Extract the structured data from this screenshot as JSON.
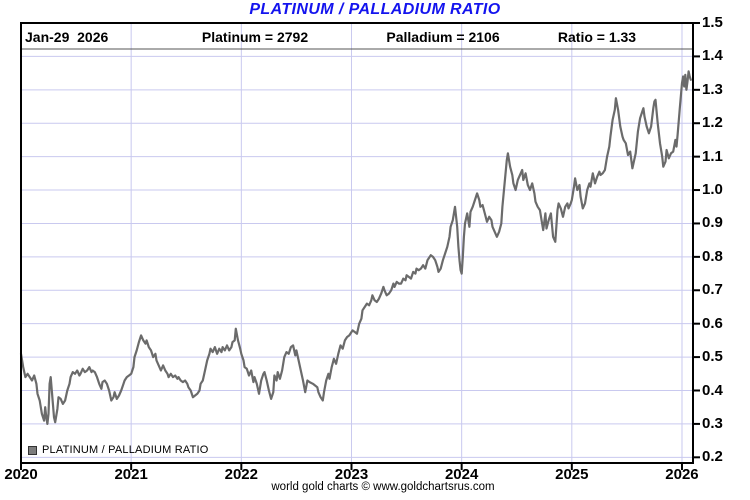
{
  "title": {
    "text": "PLATINUM / PALLADIUM RATIO",
    "color": "#1414ee"
  },
  "header": {
    "date_label": "Jan-29  2026",
    "platinum_label": "Platinum = 2792",
    "palladium_label": "Palladium = 2106",
    "ratio_label": "Ratio = 1.33"
  },
  "legend": {
    "label": "PLATINUM / PALLADIUM RATIO",
    "swatch_color": "#7d7d7d"
  },
  "footer": {
    "credit": "world gold charts © www.goldchartsrus.com"
  },
  "chart_data": {
    "type": "line",
    "title": "PLATINUM / PALLADIUM RATIO",
    "series_name": "PLATINUM / PALLADIUM RATIO",
    "line_color": "#6b6b6b",
    "grid_color": "#c9c9ef",
    "axis_color": "#000000",
    "grid": true,
    "legend_position": "bottom-left",
    "x_ticks": [
      2020,
      2021,
      2022,
      2023,
      2024,
      2025,
      2026
    ],
    "y_ticks": [
      0.2,
      0.3,
      0.4,
      0.5,
      0.6,
      0.7,
      0.8,
      0.9,
      1.0,
      1.1,
      1.2,
      1.3,
      1.4,
      1.5
    ],
    "x_range": [
      2020,
      2026.1
    ],
    "y_range": [
      0.183,
      1.5
    ],
    "latest": {
      "date": "Jan-29 2026",
      "platinum": 2792,
      "palladium": 2106,
      "ratio": 1.33
    },
    "points": [
      [
        2020.0,
        0.51
      ],
      [
        2020.02,
        0.47
      ],
      [
        2020.04,
        0.44
      ],
      [
        2020.06,
        0.45
      ],
      [
        2020.08,
        0.44
      ],
      [
        2020.1,
        0.43
      ],
      [
        2020.12,
        0.445
      ],
      [
        2020.14,
        0.42
      ],
      [
        2020.15,
        0.39
      ],
      [
        2020.17,
        0.37
      ],
      [
        2020.19,
        0.33
      ],
      [
        2020.21,
        0.31
      ],
      [
        2020.22,
        0.35
      ],
      [
        2020.23,
        0.32
      ],
      [
        2020.24,
        0.3
      ],
      [
        2020.25,
        0.33
      ],
      [
        2020.26,
        0.42
      ],
      [
        2020.27,
        0.44
      ],
      [
        2020.28,
        0.4
      ],
      [
        2020.29,
        0.36
      ],
      [
        2020.3,
        0.32
      ],
      [
        2020.31,
        0.305
      ],
      [
        2020.33,
        0.345
      ],
      [
        2020.34,
        0.38
      ],
      [
        2020.36,
        0.375
      ],
      [
        2020.38,
        0.36
      ],
      [
        2020.4,
        0.37
      ],
      [
        2020.42,
        0.4
      ],
      [
        2020.44,
        0.42
      ],
      [
        2020.45,
        0.44
      ],
      [
        2020.47,
        0.455
      ],
      [
        2020.49,
        0.45
      ],
      [
        2020.51,
        0.46
      ],
      [
        2020.53,
        0.445
      ],
      [
        2020.54,
        0.45
      ],
      [
        2020.56,
        0.465
      ],
      [
        2020.58,
        0.455
      ],
      [
        2020.6,
        0.46
      ],
      [
        2020.62,
        0.47
      ],
      [
        2020.64,
        0.455
      ],
      [
        2020.65,
        0.46
      ],
      [
        2020.67,
        0.455
      ],
      [
        2020.69,
        0.44
      ],
      [
        2020.71,
        0.42
      ],
      [
        2020.73,
        0.405
      ],
      [
        2020.74,
        0.425
      ],
      [
        2020.76,
        0.43
      ],
      [
        2020.78,
        0.42
      ],
      [
        2020.8,
        0.4
      ],
      [
        2020.82,
        0.37
      ],
      [
        2020.84,
        0.38
      ],
      [
        2020.85,
        0.395
      ],
      [
        2020.87,
        0.375
      ],
      [
        2020.89,
        0.385
      ],
      [
        2020.91,
        0.4
      ],
      [
        2020.93,
        0.42
      ],
      [
        2020.94,
        0.43
      ],
      [
        2020.96,
        0.44
      ],
      [
        2020.98,
        0.445
      ],
      [
        2021.0,
        0.45
      ],
      [
        2021.02,
        0.47
      ],
      [
        2021.03,
        0.5
      ],
      [
        2021.05,
        0.52
      ],
      [
        2021.07,
        0.545
      ],
      [
        2021.09,
        0.565
      ],
      [
        2021.11,
        0.55
      ],
      [
        2021.13,
        0.54
      ],
      [
        2021.14,
        0.55
      ],
      [
        2021.16,
        0.53
      ],
      [
        2021.18,
        0.52
      ],
      [
        2021.2,
        0.5
      ],
      [
        2021.22,
        0.51
      ],
      [
        2021.23,
        0.49
      ],
      [
        2021.25,
        0.475
      ],
      [
        2021.27,
        0.46
      ],
      [
        2021.29,
        0.475
      ],
      [
        2021.31,
        0.46
      ],
      [
        2021.33,
        0.45
      ],
      [
        2021.34,
        0.44
      ],
      [
        2021.36,
        0.45
      ],
      [
        2021.38,
        0.44
      ],
      [
        2021.4,
        0.445
      ],
      [
        2021.42,
        0.435
      ],
      [
        2021.43,
        0.44
      ],
      [
        2021.45,
        0.43
      ],
      [
        2021.47,
        0.425
      ],
      [
        2021.49,
        0.43
      ],
      [
        2021.51,
        0.42
      ],
      [
        2021.52,
        0.41
      ],
      [
        2021.54,
        0.4
      ],
      [
        2021.56,
        0.38
      ],
      [
        2021.58,
        0.385
      ],
      [
        2021.6,
        0.39
      ],
      [
        2021.62,
        0.4
      ],
      [
        2021.63,
        0.42
      ],
      [
        2021.65,
        0.43
      ],
      [
        2021.67,
        0.46
      ],
      [
        2021.69,
        0.49
      ],
      [
        2021.71,
        0.51
      ],
      [
        2021.72,
        0.525
      ],
      [
        2021.74,
        0.515
      ],
      [
        2021.76,
        0.53
      ],
      [
        2021.78,
        0.51
      ],
      [
        2021.8,
        0.525
      ],
      [
        2021.82,
        0.515
      ],
      [
        2021.83,
        0.53
      ],
      [
        2021.85,
        0.52
      ],
      [
        2021.87,
        0.535
      ],
      [
        2021.89,
        0.52
      ],
      [
        2021.91,
        0.53
      ],
      [
        2021.92,
        0.545
      ],
      [
        2021.94,
        0.55
      ],
      [
        2021.95,
        0.585
      ],
      [
        2021.97,
        0.55
      ],
      [
        2021.99,
        0.525
      ],
      [
        2022.0,
        0.51
      ],
      [
        2022.02,
        0.49
      ],
      [
        2022.03,
        0.47
      ],
      [
        2022.05,
        0.465
      ],
      [
        2022.07,
        0.445
      ],
      [
        2022.09,
        0.46
      ],
      [
        2022.11,
        0.425
      ],
      [
        2022.12,
        0.44
      ],
      [
        2022.14,
        0.42
      ],
      [
        2022.16,
        0.39
      ],
      [
        2022.18,
        0.43
      ],
      [
        2022.2,
        0.45
      ],
      [
        2022.21,
        0.455
      ],
      [
        2022.23,
        0.43
      ],
      [
        2022.25,
        0.4
      ],
      [
        2022.27,
        0.375
      ],
      [
        2022.29,
        0.395
      ],
      [
        2022.3,
        0.445
      ],
      [
        2022.32,
        0.43
      ],
      [
        2022.33,
        0.455
      ],
      [
        2022.35,
        0.435
      ],
      [
        2022.37,
        0.46
      ],
      [
        2022.39,
        0.5
      ],
      [
        2022.41,
        0.515
      ],
      [
        2022.43,
        0.51
      ],
      [
        2022.45,
        0.53
      ],
      [
        2022.47,
        0.535
      ],
      [
        2022.49,
        0.505
      ],
      [
        2022.5,
        0.52
      ],
      [
        2022.52,
        0.49
      ],
      [
        2022.54,
        0.46
      ],
      [
        2022.56,
        0.43
      ],
      [
        2022.58,
        0.395
      ],
      [
        2022.6,
        0.43
      ],
      [
        2022.62,
        0.425
      ],
      [
        2022.65,
        0.42
      ],
      [
        2022.67,
        0.415
      ],
      [
        2022.69,
        0.41
      ],
      [
        2022.7,
        0.395
      ],
      [
        2022.72,
        0.38
      ],
      [
        2022.74,
        0.37
      ],
      [
        2022.75,
        0.395
      ],
      [
        2022.77,
        0.43
      ],
      [
        2022.79,
        0.45
      ],
      [
        2022.8,
        0.435
      ],
      [
        2022.82,
        0.47
      ],
      [
        2022.84,
        0.495
      ],
      [
        2022.86,
        0.48
      ],
      [
        2022.88,
        0.51
      ],
      [
        2022.9,
        0.535
      ],
      [
        2022.92,
        0.525
      ],
      [
        2022.94,
        0.55
      ],
      [
        2022.96,
        0.56
      ],
      [
        2022.98,
        0.565
      ],
      [
        2023.0,
        0.575
      ],
      [
        2023.01,
        0.58
      ],
      [
        2023.03,
        0.575
      ],
      [
        2023.05,
        0.57
      ],
      [
        2023.07,
        0.6
      ],
      [
        2023.09,
        0.615
      ],
      [
        2023.1,
        0.64
      ],
      [
        2023.12,
        0.65
      ],
      [
        2023.14,
        0.66
      ],
      [
        2023.16,
        0.655
      ],
      [
        2023.18,
        0.67
      ],
      [
        2023.19,
        0.685
      ],
      [
        2023.21,
        0.67
      ],
      [
        2023.23,
        0.665
      ],
      [
        2023.25,
        0.675
      ],
      [
        2023.27,
        0.69
      ],
      [
        2023.29,
        0.71
      ],
      [
        2023.3,
        0.7
      ],
      [
        2023.32,
        0.685
      ],
      [
        2023.34,
        0.69
      ],
      [
        2023.36,
        0.7
      ],
      [
        2023.38,
        0.72
      ],
      [
        2023.39,
        0.71
      ],
      [
        2023.41,
        0.725
      ],
      [
        2023.43,
        0.72
      ],
      [
        2023.45,
        0.72
      ],
      [
        2023.47,
        0.735
      ],
      [
        2023.49,
        0.73
      ],
      [
        2023.5,
        0.745
      ],
      [
        2023.52,
        0.74
      ],
      [
        2023.54,
        0.735
      ],
      [
        2023.56,
        0.755
      ],
      [
        2023.58,
        0.75
      ],
      [
        2023.59,
        0.765
      ],
      [
        2023.61,
        0.76
      ],
      [
        2023.63,
        0.765
      ],
      [
        2023.65,
        0.775
      ],
      [
        2023.67,
        0.765
      ],
      [
        2023.69,
        0.79
      ],
      [
        2023.7,
        0.795
      ],
      [
        2023.72,
        0.805
      ],
      [
        2023.74,
        0.8
      ],
      [
        2023.76,
        0.79
      ],
      [
        2023.78,
        0.77
      ],
      [
        2023.79,
        0.755
      ],
      [
        2023.81,
        0.765
      ],
      [
        2023.83,
        0.79
      ],
      [
        2023.85,
        0.81
      ],
      [
        2023.87,
        0.83
      ],
      [
        2023.89,
        0.86
      ],
      [
        2023.9,
        0.89
      ],
      [
        2023.92,
        0.91
      ],
      [
        2023.94,
        0.95
      ],
      [
        2023.96,
        0.89
      ],
      [
        2023.97,
        0.83
      ],
      [
        2023.98,
        0.79
      ],
      [
        2023.99,
        0.76
      ],
      [
        2024.0,
        0.75
      ],
      [
        2024.01,
        0.8
      ],
      [
        2024.02,
        0.86
      ],
      [
        2024.03,
        0.9
      ],
      [
        2024.05,
        0.93
      ],
      [
        2024.07,
        0.89
      ],
      [
        2024.08,
        0.935
      ],
      [
        2024.1,
        0.95
      ],
      [
        2024.12,
        0.97
      ],
      [
        2024.14,
        0.99
      ],
      [
        2024.16,
        0.97
      ],
      [
        2024.17,
        0.95
      ],
      [
        2024.19,
        0.955
      ],
      [
        2024.21,
        0.93
      ],
      [
        2024.23,
        0.905
      ],
      [
        2024.25,
        0.92
      ],
      [
        2024.27,
        0.91
      ],
      [
        2024.28,
        0.89
      ],
      [
        2024.3,
        0.875
      ],
      [
        2024.32,
        0.86
      ],
      [
        2024.34,
        0.875
      ],
      [
        2024.36,
        0.9
      ],
      [
        2024.37,
        0.95
      ],
      [
        2024.39,
        1.02
      ],
      [
        2024.41,
        1.09
      ],
      [
        2024.42,
        1.11
      ],
      [
        2024.44,
        1.07
      ],
      [
        2024.46,
        1.045
      ],
      [
        2024.47,
        1.02
      ],
      [
        2024.49,
        1.0
      ],
      [
        2024.51,
        1.03
      ],
      [
        2024.53,
        1.045
      ],
      [
        2024.55,
        1.06
      ],
      [
        2024.56,
        1.03
      ],
      [
        2024.58,
        1.05
      ],
      [
        2024.6,
        1.015
      ],
      [
        2024.62,
        1.0
      ],
      [
        2024.64,
        1.02
      ],
      [
        2024.66,
        0.99
      ],
      [
        2024.67,
        0.965
      ],
      [
        2024.69,
        0.95
      ],
      [
        2024.71,
        0.94
      ],
      [
        2024.73,
        0.9
      ],
      [
        2024.74,
        0.88
      ],
      [
        2024.76,
        0.93
      ],
      [
        2024.77,
        0.885
      ],
      [
        2024.79,
        0.91
      ],
      [
        2024.81,
        0.93
      ],
      [
        2024.83,
        0.86
      ],
      [
        2024.85,
        0.845
      ],
      [
        2024.87,
        0.94
      ],
      [
        2024.88,
        0.96
      ],
      [
        2024.9,
        0.945
      ],
      [
        2024.92,
        0.92
      ],
      [
        2024.94,
        0.95
      ],
      [
        2024.96,
        0.96
      ],
      [
        2024.97,
        0.945
      ],
      [
        2024.99,
        0.96
      ],
      [
        2025.0,
        0.97
      ],
      [
        2025.02,
        1.01
      ],
      [
        2025.03,
        1.035
      ],
      [
        2025.05,
        1.0
      ],
      [
        2025.07,
        1.015
      ],
      [
        2025.08,
        0.98
      ],
      [
        2025.1,
        0.945
      ],
      [
        2025.12,
        0.96
      ],
      [
        2025.14,
        1.0
      ],
      [
        2025.16,
        1.02
      ],
      [
        2025.17,
        1.01
      ],
      [
        2025.19,
        1.05
      ],
      [
        2025.21,
        1.02
      ],
      [
        2025.23,
        1.04
      ],
      [
        2025.25,
        1.055
      ],
      [
        2025.26,
        1.045
      ],
      [
        2025.28,
        1.05
      ],
      [
        2025.3,
        1.06
      ],
      [
        2025.32,
        1.1
      ],
      [
        2025.34,
        1.13
      ],
      [
        2025.35,
        1.16
      ],
      [
        2025.37,
        1.21
      ],
      [
        2025.39,
        1.24
      ],
      [
        2025.4,
        1.275
      ],
      [
        2025.42,
        1.24
      ],
      [
        2025.44,
        1.19
      ],
      [
        2025.46,
        1.16
      ],
      [
        2025.47,
        1.15
      ],
      [
        2025.49,
        1.14
      ],
      [
        2025.51,
        1.105
      ],
      [
        2025.53,
        1.115
      ],
      [
        2025.55,
        1.065
      ],
      [
        2025.56,
        1.08
      ],
      [
        2025.58,
        1.11
      ],
      [
        2025.6,
        1.175
      ],
      [
        2025.62,
        1.215
      ],
      [
        2025.64,
        1.235
      ],
      [
        2025.65,
        1.245
      ],
      [
        2025.66,
        1.22
      ],
      [
        2025.68,
        1.19
      ],
      [
        2025.7,
        1.17
      ],
      [
        2025.72,
        1.19
      ],
      [
        2025.74,
        1.245
      ],
      [
        2025.75,
        1.265
      ],
      [
        2025.76,
        1.27
      ],
      [
        2025.78,
        1.2
      ],
      [
        2025.8,
        1.14
      ],
      [
        2025.82,
        1.1
      ],
      [
        2025.83,
        1.07
      ],
      [
        2025.85,
        1.085
      ],
      [
        2025.86,
        1.12
      ],
      [
        2025.88,
        1.095
      ],
      [
        2025.9,
        1.11
      ],
      [
        2025.92,
        1.115
      ],
      [
        2025.94,
        1.15
      ],
      [
        2025.95,
        1.13
      ],
      [
        2025.96,
        1.165
      ],
      [
        2025.98,
        1.245
      ],
      [
        2026.0,
        1.32
      ],
      [
        2026.01,
        1.34
      ],
      [
        2026.02,
        1.31
      ],
      [
        2026.03,
        1.345
      ],
      [
        2026.04,
        1.3
      ],
      [
        2026.05,
        1.325
      ],
      [
        2026.06,
        1.355
      ],
      [
        2026.07,
        1.34
      ],
      [
        2026.08,
        1.33
      ]
    ]
  }
}
